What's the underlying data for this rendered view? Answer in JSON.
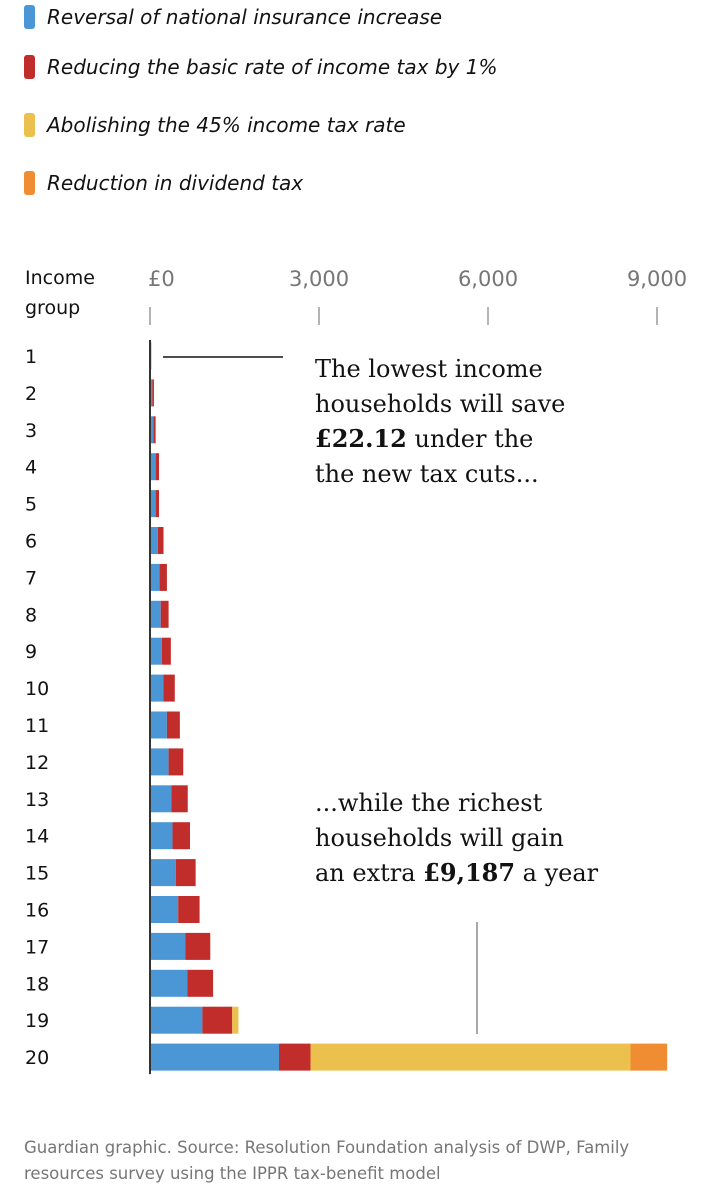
{
  "legend": [
    {
      "label": "Reversal of national insurance increase",
      "color": "#4b97d6"
    },
    {
      "label": "Reducing the basic rate of income tax by 1%",
      "color": "#c12d2a"
    },
    {
      "label": "Abolishing the 45% income tax rate",
      "color": "#ecc04d"
    },
    {
      "label": "Reduction in dividend tax",
      "color": "#f08c32"
    }
  ],
  "source": "Guardian graphic. Source: Resolution Foundation analysis of DWP, Family resources survey using the IPPR tax-benefit model",
  "chart_data": {
    "type": "bar",
    "orientation": "horizontal",
    "stacked": true,
    "category_axis_title": [
      "Income",
      "group"
    ],
    "categories": [
      "1",
      "2",
      "3",
      "4",
      "5",
      "6",
      "7",
      "8",
      "9",
      "10",
      "11",
      "12",
      "13",
      "14",
      "15",
      "16",
      "17",
      "18",
      "19",
      "20"
    ],
    "x_ticks": [
      {
        "value": 0,
        "label": "£0"
      },
      {
        "value": 3000,
        "label": "3,000"
      },
      {
        "value": 6000,
        "label": "6,000"
      },
      {
        "value": 9000,
        "label": "9,000"
      }
    ],
    "xlim": [
      0,
      9200
    ],
    "grid": false,
    "legend_position": "top",
    "series": [
      {
        "name": "Reversal of national insurance increase",
        "color": "#4b97d6",
        "values": [
          10,
          40,
          60,
          100,
          100,
          140,
          170,
          190,
          210,
          240,
          300,
          330,
          380,
          400,
          460,
          500,
          630,
          660,
          930,
          2290
        ]
      },
      {
        "name": "Reducing the basic rate of income tax by 1%",
        "color": "#c12d2a",
        "values": [
          12,
          30,
          40,
          60,
          60,
          100,
          130,
          140,
          160,
          200,
          230,
          260,
          290,
          310,
          350,
          380,
          440,
          460,
          530,
          560
        ]
      },
      {
        "name": "Abolishing the 45% income tax rate",
        "color": "#ecc04d",
        "values": [
          0,
          0,
          0,
          0,
          0,
          0,
          0,
          0,
          0,
          0,
          0,
          0,
          0,
          0,
          0,
          0,
          0,
          0,
          110,
          5680
        ]
      },
      {
        "name": "Reduction in dividend tax",
        "color": "#f08c32",
        "values": [
          0,
          0,
          0,
          0,
          0,
          0,
          0,
          0,
          0,
          0,
          0,
          0,
          0,
          0,
          0,
          0,
          0,
          0,
          0,
          650
        ]
      }
    ],
    "annotations": [
      {
        "target_category": "1",
        "lines": [
          [
            {
              "text": "The lowest income"
            }
          ],
          [
            {
              "text": "households will save"
            }
          ],
          [
            {
              "text": "£22.12",
              "bold": true
            },
            {
              "text": " under the"
            }
          ],
          [
            {
              "text": "the new tax cuts..."
            }
          ]
        ]
      },
      {
        "target_category": "20",
        "lines": [
          [
            {
              "text": "...while the richest"
            }
          ],
          [
            {
              "text": "households will gain"
            }
          ],
          [
            {
              "text": "an extra "
            },
            {
              "text": "£9,187",
              "bold": true
            },
            {
              "text": " a year"
            }
          ]
        ]
      }
    ]
  }
}
